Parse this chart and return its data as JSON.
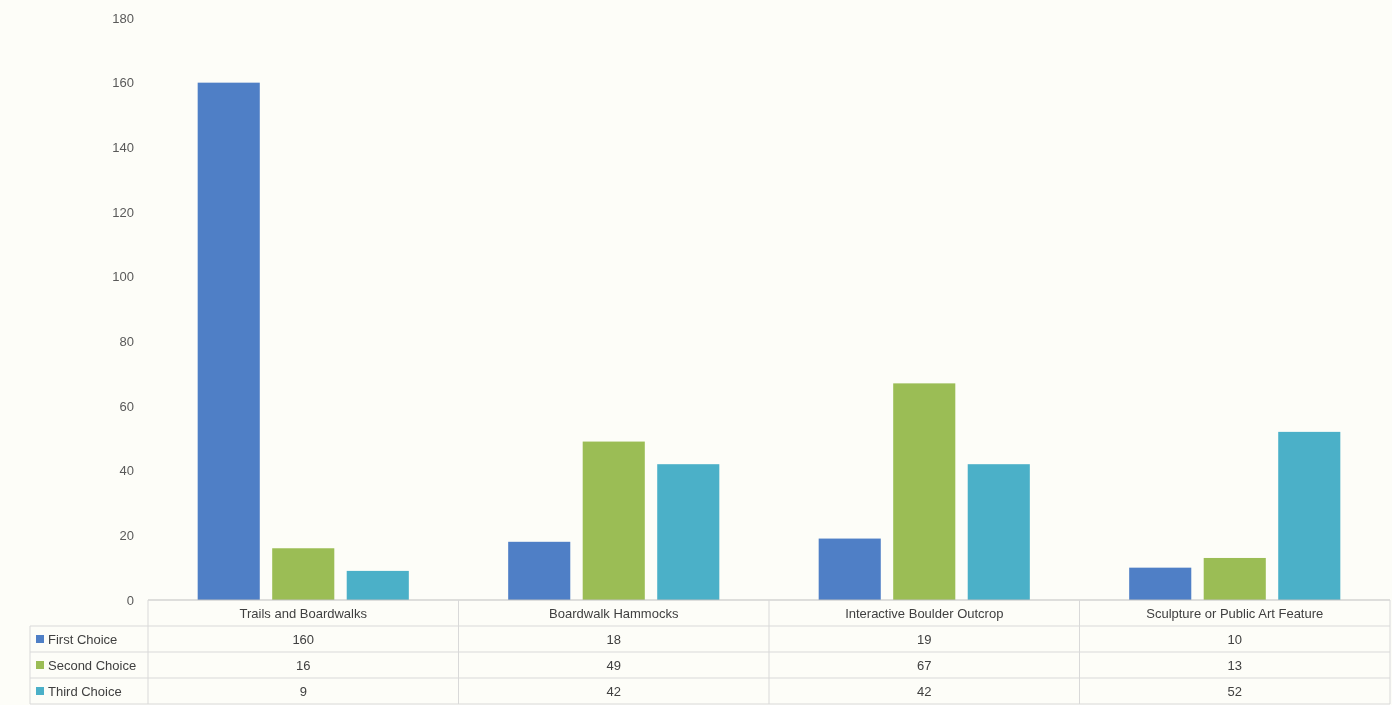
{
  "chart_data": {
    "type": "bar",
    "categories": [
      "Trails and Boardwalks",
      "Boardwalk Hammocks",
      "Interactive Boulder Outcrop",
      "Sculpture or Public Art Feature"
    ],
    "series": [
      {
        "name": "First Choice",
        "color": "#4f7fc6",
        "values": [
          160,
          18,
          19,
          10
        ]
      },
      {
        "name": "Second Choice",
        "color": "#9bbd55",
        "values": [
          16,
          49,
          67,
          13
        ]
      },
      {
        "name": "Third Choice",
        "color": "#4bb0c8",
        "values": [
          9,
          42,
          42,
          52
        ]
      }
    ],
    "ylim": [
      0,
      180
    ],
    "yticks": [
      0,
      20,
      40,
      60,
      80,
      100,
      120,
      140,
      160,
      180
    ],
    "grid": false,
    "legend": "bottom",
    "data_labels": true
  }
}
